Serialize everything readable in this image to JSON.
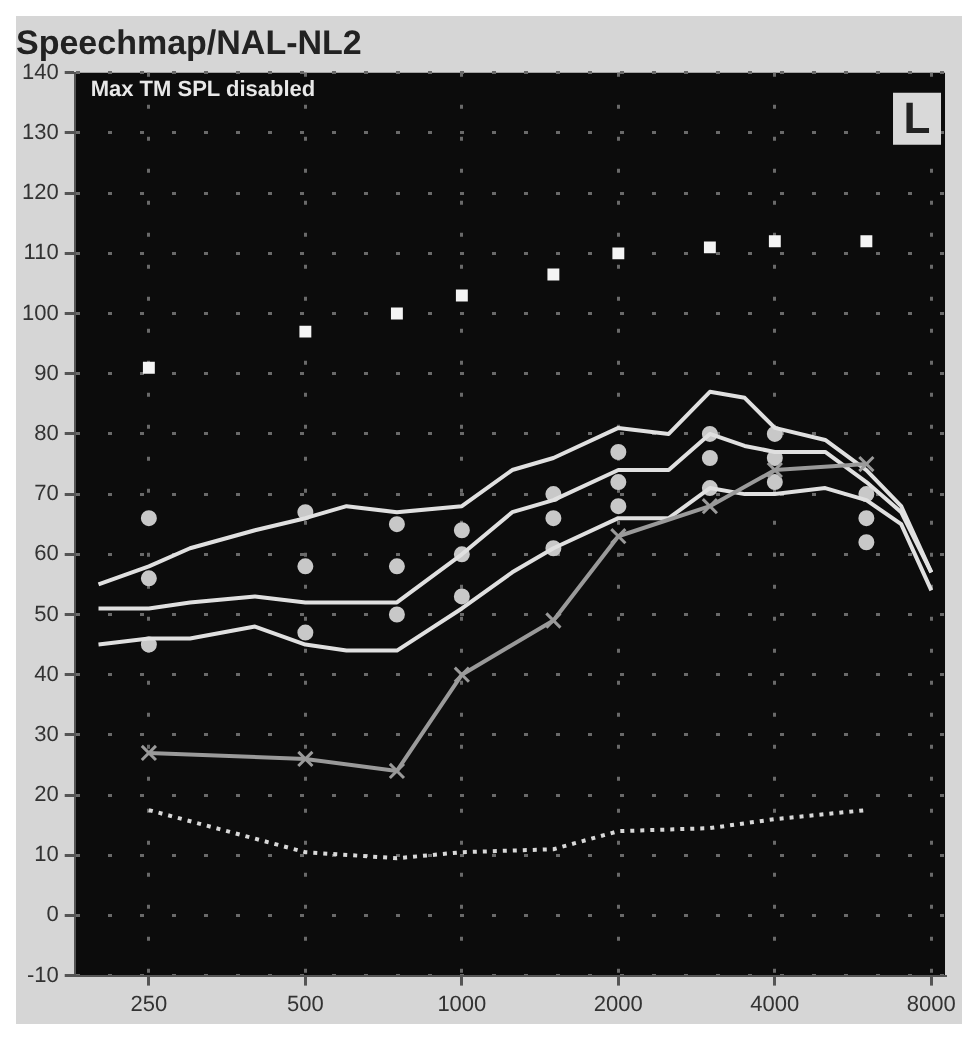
{
  "chart_data": {
    "type": "line",
    "title": "Speechmap/NAL-NL2",
    "annotations": [
      "Max TM SPL disabled",
      "L"
    ],
    "xlim": [
      180,
      8500
    ],
    "xticks": [
      250,
      500,
      1000,
      2000,
      4000,
      8000
    ],
    "log": "x",
    "ylim": [
      -10,
      140
    ],
    "yticks": [
      -10,
      0,
      10,
      20,
      30,
      40,
      50,
      60,
      70,
      80,
      90,
      100,
      110,
      120,
      130,
      140
    ],
    "grid": true,
    "series": [
      {
        "type": "scatter",
        "marker": "square",
        "color": "#f4f4f4",
        "x": [
          250,
          500,
          750,
          1000,
          1500,
          2000,
          3000,
          4000,
          6000
        ],
        "values": [
          91,
          97,
          100,
          103,
          106.5,
          110,
          111,
          112,
          112
        ]
      },
      {
        "type": "line",
        "marker": "cross",
        "color": "#9a9a9a",
        "x": [
          250,
          500,
          750,
          1000,
          1500,
          2000,
          3000,
          4000,
          6000
        ],
        "values": [
          27,
          26,
          24,
          40,
          49,
          63,
          68,
          74,
          75
        ]
      },
      {
        "type": "line",
        "marker": "none",
        "line_style": "dotted",
        "color": "#d8d8d8",
        "x": [
          250,
          500,
          750,
          1000,
          1500,
          2000,
          3000,
          4000,
          6000
        ],
        "values": [
          17.5,
          10.5,
          9.5,
          10.5,
          11,
          14,
          14.5,
          16,
          17.5
        ]
      },
      {
        "type": "line",
        "marker": "none",
        "color": "#e0e0e0",
        "x": [
          200,
          250,
          300,
          400,
          500,
          600,
          750,
          1000,
          1250,
          1500,
          2000,
          2500,
          3000,
          3500,
          4000,
          5000,
          6000,
          7000,
          8000
        ],
        "values": [
          55,
          58,
          61,
          64,
          66,
          68,
          67,
          68,
          74,
          76,
          81,
          80,
          87,
          86,
          81,
          79,
          74,
          68,
          57
        ]
      },
      {
        "type": "line",
        "marker": "none",
        "color": "#e0e0e0",
        "x": [
          200,
          250,
          300,
          400,
          500,
          600,
          750,
          1000,
          1250,
          1500,
          2000,
          2500,
          3000,
          3500,
          4000,
          5000,
          6000,
          7000,
          8000
        ],
        "values": [
          51,
          51,
          52,
          53,
          52,
          52,
          52,
          60,
          67,
          69,
          74,
          74,
          80,
          78,
          77,
          77,
          72,
          67,
          57
        ]
      },
      {
        "type": "line",
        "marker": "none",
        "color": "#e0e0e0",
        "x": [
          200,
          250,
          300,
          400,
          500,
          600,
          750,
          1000,
          1250,
          1500,
          2000,
          2500,
          3000,
          3500,
          4000,
          5000,
          6000,
          7000,
          8000
        ],
        "values": [
          45,
          46,
          46,
          48,
          45,
          44,
          44,
          51,
          57,
          61,
          66,
          66,
          71,
          70,
          70,
          71,
          69,
          65,
          54
        ]
      },
      {
        "type": "scatter",
        "marker": "circle",
        "color": "#c8c8c8",
        "x": [
          250,
          250,
          250,
          500,
          500,
          500,
          750,
          750,
          750,
          1000,
          1000,
          1000,
          1500,
          1500,
          1500,
          2000,
          2000,
          2000,
          3000,
          3000,
          3000,
          4000,
          4000,
          4000,
          6000,
          6000,
          6000
        ],
        "values": [
          66,
          56,
          45,
          67,
          58,
          47,
          65,
          58,
          50,
          64,
          60,
          53,
          70,
          66,
          61,
          77,
          72,
          68,
          80,
          76,
          71,
          80,
          76,
          72,
          70,
          66,
          62
        ]
      }
    ]
  }
}
